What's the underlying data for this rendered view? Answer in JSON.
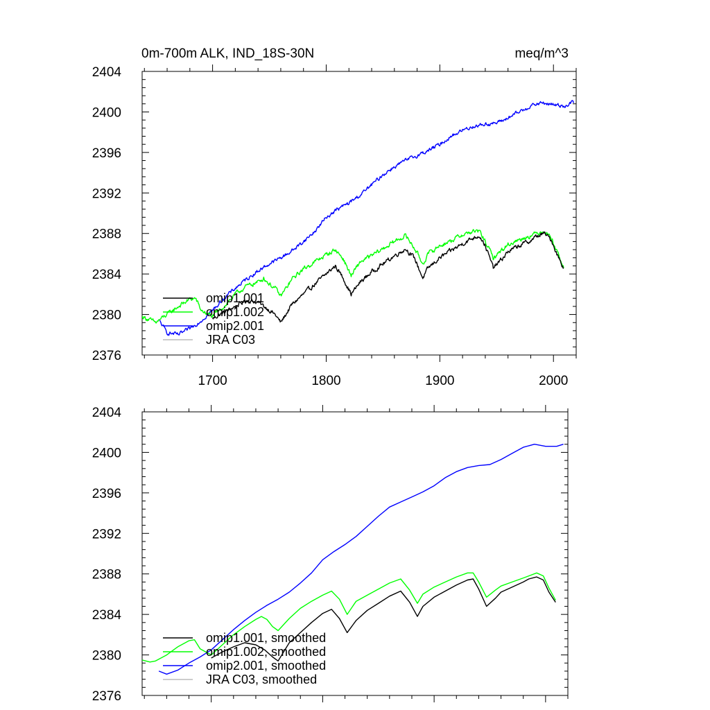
{
  "chart_data": [
    {
      "type": "line",
      "title_left": "0m-700m ALK, IND_18S-30N",
      "title_right": "meq/m^3",
      "xlim": [
        1638,
        2020
      ],
      "ylim": [
        2376,
        2404
      ],
      "x_ticks": [
        1700,
        1800,
        1900,
        2000
      ],
      "x_tick_labels": [
        "1700",
        "1800",
        "1900",
        "2000"
      ],
      "y_ticks": [
        2376,
        2380,
        2384,
        2388,
        2392,
        2396,
        2400,
        2404
      ],
      "y_tick_labels": [
        "2376",
        "2380",
        "2384",
        "2388",
        "2392",
        "2396",
        "2400",
        "2404"
      ],
      "legend_position": "bottom-left",
      "series": [
        {
          "name": "omip1.001",
          "color": "#000000",
          "noise": 0.35,
          "x": [
            1700,
            1710,
            1720,
            1730,
            1740,
            1748,
            1755,
            1760,
            1770,
            1780,
            1790,
            1800,
            1808,
            1815,
            1822,
            1830,
            1840,
            1850,
            1860,
            1870,
            1878,
            1885,
            1890,
            1900,
            1910,
            1920,
            1930,
            1935,
            1940,
            1947,
            1955,
            1960,
            1970,
            1980,
            1985,
            1992,
            1998,
            2003,
            2009
          ],
          "y": [
            2379.6,
            2380.2,
            2380.8,
            2381.4,
            2381.2,
            2380.6,
            2380.0,
            2379.2,
            2381.0,
            2382.0,
            2383.0,
            2384.0,
            2384.8,
            2383.6,
            2382.0,
            2383.2,
            2384.2,
            2385.0,
            2385.8,
            2386.5,
            2385.5,
            2383.6,
            2384.6,
            2385.6,
            2386.3,
            2387.0,
            2387.6,
            2387.8,
            2386.8,
            2384.6,
            2385.5,
            2386.2,
            2386.8,
            2387.3,
            2387.7,
            2388.0,
            2387.4,
            2386.0,
            2384.6
          ]
        },
        {
          "name": "omip1.002",
          "color": "#00ff00",
          "noise": 0.35,
          "x": [
            1638,
            1650,
            1660,
            1670,
            1680,
            1685,
            1690,
            1700,
            1710,
            1720,
            1730,
            1740,
            1745,
            1750,
            1755,
            1760,
            1770,
            1780,
            1790,
            1800,
            1808,
            1815,
            1822,
            1830,
            1840,
            1850,
            1860,
            1870,
            1878,
            1885,
            1890,
            1900,
            1910,
            1920,
            1930,
            1935,
            1940,
            1947,
            1955,
            1960,
            1970,
            1980,
            1985,
            1992,
            1998,
            2003,
            2009
          ],
          "y": [
            2379.8,
            2379.2,
            2380.0,
            2380.8,
            2381.5,
            2381.6,
            2380.4,
            2379.8,
            2380.8,
            2382.0,
            2382.8,
            2383.2,
            2383.6,
            2383.0,
            2382.6,
            2381.8,
            2383.5,
            2384.5,
            2385.2,
            2385.9,
            2386.4,
            2385.5,
            2383.8,
            2385.2,
            2385.8,
            2386.5,
            2387.2,
            2387.8,
            2386.5,
            2385.0,
            2386.0,
            2386.8,
            2387.3,
            2387.9,
            2388.2,
            2388.2,
            2387.2,
            2385.6,
            2386.4,
            2386.9,
            2387.4,
            2387.8,
            2388.0,
            2388.3,
            2387.6,
            2386.3,
            2384.6
          ]
        },
        {
          "name": "omip2.001",
          "color": "#0000ff",
          "noise": 0.3,
          "x": [
            1653,
            1660,
            1670,
            1680,
            1690,
            1700,
            1710,
            1720,
            1730,
            1740,
            1750,
            1760,
            1770,
            1780,
            1790,
            1800,
            1810,
            1820,
            1830,
            1840,
            1850,
            1860,
            1870,
            1880,
            1890,
            1900,
            1910,
            1920,
            1930,
            1940,
            1950,
            1960,
            1970,
            1980,
            1990,
            2000,
            2010,
            2018
          ],
          "y": [
            2379.4,
            2378.2,
            2378.0,
            2378.6,
            2379.4,
            2380.4,
            2381.6,
            2382.6,
            2383.5,
            2384.3,
            2385.0,
            2385.6,
            2386.3,
            2387.2,
            2388.2,
            2389.6,
            2390.4,
            2391.0,
            2391.8,
            2392.8,
            2393.8,
            2394.6,
            2395.2,
            2395.7,
            2396.2,
            2396.8,
            2397.6,
            2398.2,
            2398.6,
            2398.8,
            2398.9,
            2399.4,
            2400.0,
            2400.6,
            2400.9,
            2400.7,
            2400.6,
            2401.0
          ]
        },
        {
          "name": "JRA C03",
          "color": "#bbbbbb",
          "noise": 0,
          "x": [],
          "y": []
        }
      ]
    },
    {
      "type": "line",
      "xlim": [
        1638,
        2020
      ],
      "ylim": [
        2376,
        2404
      ],
      "x_ticks": [
        1700,
        1800,
        1900,
        2000
      ],
      "y_ticks": [
        2376,
        2380,
        2384,
        2388,
        2392,
        2396,
        2400,
        2404
      ],
      "y_tick_labels": [
        "2376",
        "2380",
        "2384",
        "2388",
        "2392",
        "2396",
        "2400",
        "2404"
      ],
      "legend_position": "bottom-left",
      "series": [
        {
          "name": "omip1.001, smoothed",
          "color": "#000000",
          "x": [
            1700,
            1710,
            1720,
            1730,
            1740,
            1748,
            1755,
            1760,
            1770,
            1780,
            1790,
            1800,
            1808,
            1815,
            1822,
            1830,
            1840,
            1850,
            1860,
            1870,
            1878,
            1885,
            1890,
            1900,
            1910,
            1920,
            1930,
            1935,
            1940,
            1947,
            1955,
            1960,
            1970,
            1980,
            1985,
            1992,
            1998,
            2003,
            2009
          ],
          "y": [
            2379.7,
            2380.3,
            2380.8,
            2381.2,
            2381.0,
            2380.5,
            2379.8,
            2379.4,
            2381.2,
            2382.2,
            2383.2,
            2384.1,
            2384.5,
            2383.6,
            2382.2,
            2383.4,
            2384.4,
            2385.1,
            2385.8,
            2386.3,
            2385.2,
            2383.8,
            2384.8,
            2385.7,
            2386.3,
            2386.9,
            2387.4,
            2387.5,
            2386.5,
            2384.8,
            2385.6,
            2386.2,
            2386.7,
            2387.2,
            2387.5,
            2387.7,
            2387.4,
            2386.2,
            2385.2
          ]
        },
        {
          "name": "omip1.002, smoothed",
          "color": "#00ff00",
          "x": [
            1638,
            1645,
            1650,
            1660,
            1670,
            1680,
            1685,
            1690,
            1700,
            1710,
            1720,
            1730,
            1740,
            1745,
            1750,
            1755,
            1760,
            1770,
            1780,
            1790,
            1800,
            1808,
            1815,
            1822,
            1830,
            1840,
            1850,
            1860,
            1870,
            1878,
            1885,
            1890,
            1900,
            1910,
            1920,
            1930,
            1935,
            1940,
            1947,
            1955,
            1960,
            1970,
            1980,
            1985,
            1992,
            1998,
            2003,
            2009
          ],
          "y": [
            2379.5,
            2379.3,
            2379.4,
            2380.0,
            2380.8,
            2381.4,
            2381.5,
            2380.6,
            2380.0,
            2381.0,
            2382.0,
            2382.8,
            2383.5,
            2383.8,
            2383.5,
            2382.8,
            2382.4,
            2383.6,
            2384.6,
            2385.3,
            2385.9,
            2386.3,
            2385.5,
            2384.0,
            2385.3,
            2385.9,
            2386.5,
            2387.1,
            2387.5,
            2386.4,
            2385.1,
            2386.0,
            2386.7,
            2387.2,
            2387.7,
            2388.1,
            2388.1,
            2387.2,
            2385.7,
            2386.4,
            2386.8,
            2387.2,
            2387.6,
            2387.8,
            2388.1,
            2387.8,
            2386.6,
            2385.4
          ]
        },
        {
          "name": "omip2.001, smoothed",
          "color": "#0000ff",
          "x": [
            1653,
            1660,
            1670,
            1680,
            1690,
            1700,
            1710,
            1720,
            1730,
            1740,
            1750,
            1760,
            1770,
            1780,
            1790,
            1800,
            1810,
            1820,
            1830,
            1840,
            1850,
            1860,
            1870,
            1880,
            1890,
            1900,
            1910,
            1920,
            1930,
            1940,
            1950,
            1960,
            1970,
            1980,
            1990,
            2000,
            2010,
            2016
          ],
          "y": [
            2378.4,
            2378.1,
            2378.5,
            2379.2,
            2379.8,
            2380.5,
            2381.5,
            2382.5,
            2383.4,
            2384.2,
            2384.9,
            2385.5,
            2386.2,
            2387.1,
            2388.1,
            2389.4,
            2390.2,
            2390.9,
            2391.7,
            2392.7,
            2393.7,
            2394.6,
            2395.1,
            2395.6,
            2396.1,
            2396.7,
            2397.5,
            2398.1,
            2398.5,
            2398.7,
            2398.8,
            2399.3,
            2399.9,
            2400.5,
            2400.8,
            2400.6,
            2400.6,
            2400.8
          ]
        },
        {
          "name": "JRA C03, smoothed",
          "color": "#bbbbbb",
          "x": [],
          "y": []
        }
      ]
    }
  ]
}
